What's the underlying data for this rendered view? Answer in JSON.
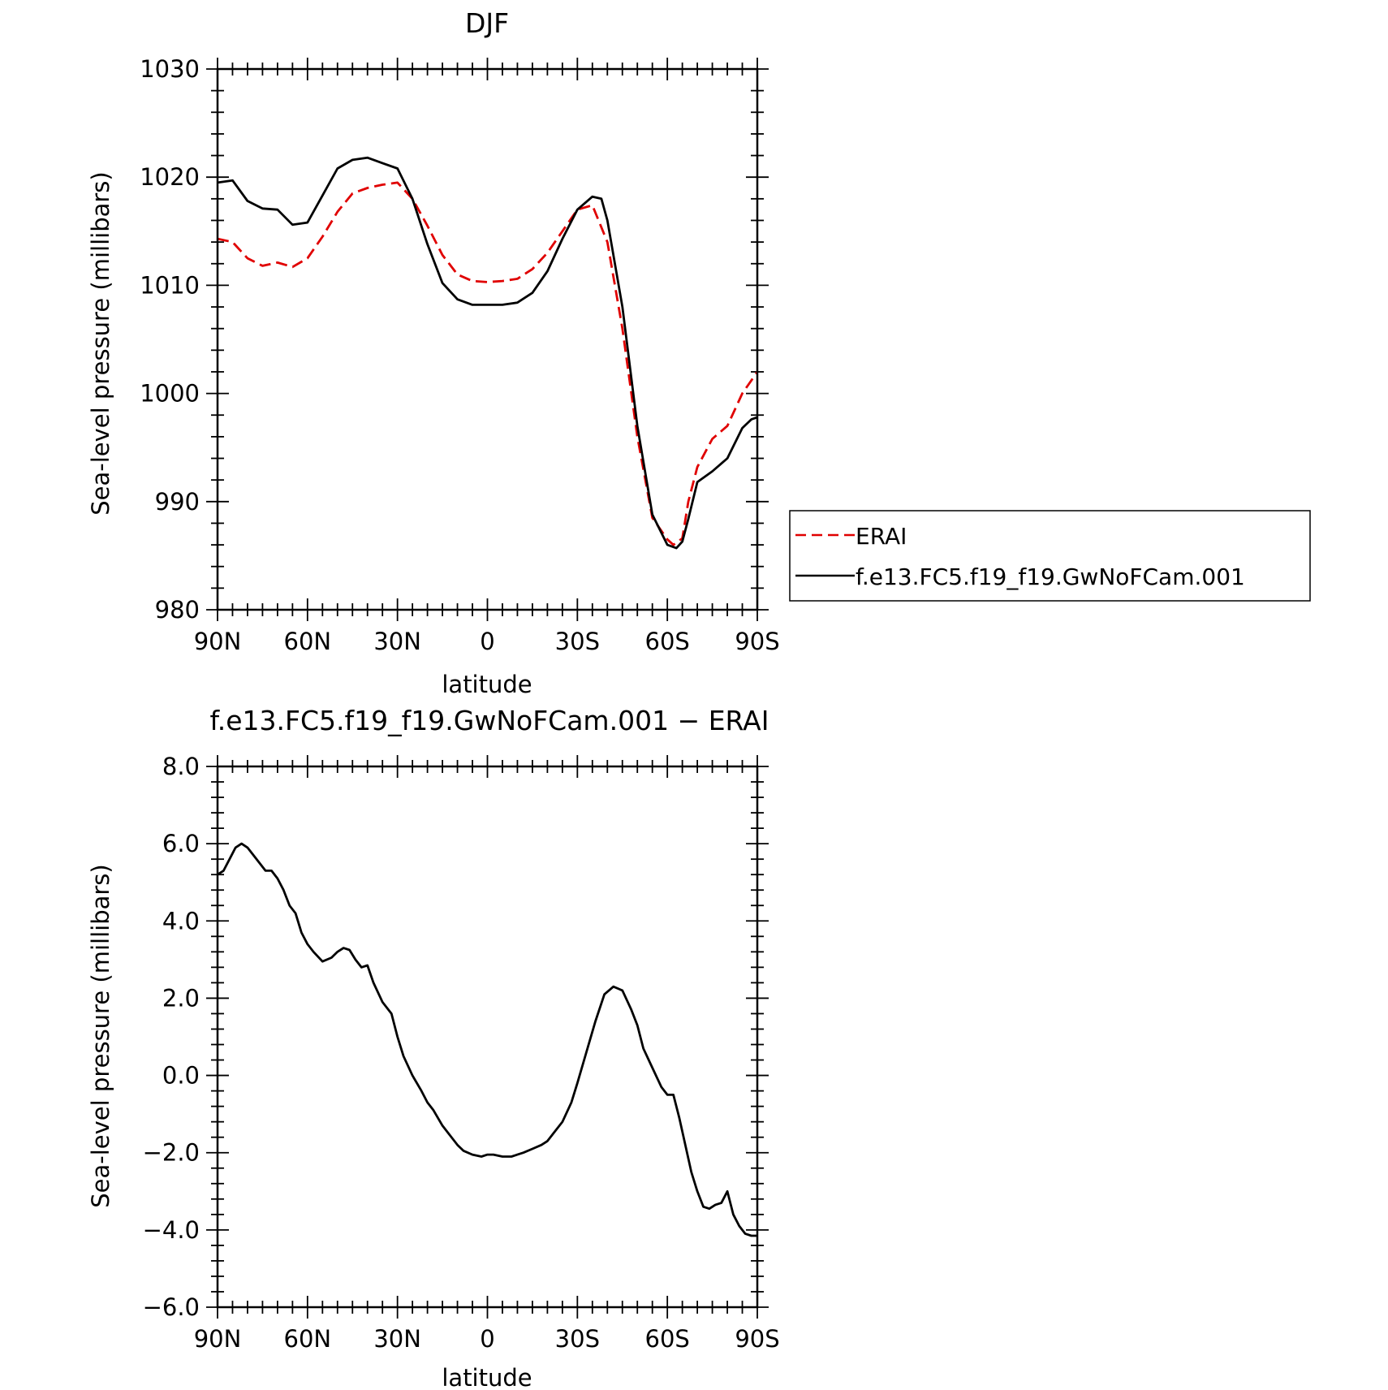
{
  "chart_data": [
    {
      "type": "line",
      "title": "DJF",
      "xlabel": "latitude",
      "ylabel": "Sea-level pressure (millibars)",
      "xlim": [
        90,
        -90
      ],
      "ylim": [
        980,
        1030
      ],
      "x_ticks": [
        90,
        60,
        30,
        0,
        -30,
        -60,
        -90
      ],
      "x_tick_labels": [
        "90N",
        "60N",
        "30N",
        "0",
        "30S",
        "60S",
        "90S"
      ],
      "y_ticks": [
        980,
        990,
        1000,
        1010,
        1020,
        1030
      ],
      "y_tick_labels": [
        "980",
        "990",
        "1000",
        "1010",
        "1020",
        "1030"
      ],
      "legend_position": "right",
      "series": [
        {
          "name": "ERAI",
          "color": "#e00000",
          "style": "dashed",
          "x": [
            90,
            85,
            80,
            75,
            70,
            65,
            60,
            55,
            50,
            45,
            40,
            35,
            30,
            25,
            20,
            15,
            10,
            5,
            0,
            -5,
            -10,
            -15,
            -20,
            -25,
            -30,
            -35,
            -40,
            -45,
            -50,
            -55,
            -60,
            -62,
            -65,
            -67,
            -70,
            -75,
            -80,
            -85,
            -90
          ],
          "y": [
            1014.3,
            1014.0,
            1012.5,
            1011.8,
            1012.1,
            1011.7,
            1012.5,
            1014.5,
            1016.8,
            1018.5,
            1019.0,
            1019.3,
            1019.5,
            1018.0,
            1015.5,
            1012.8,
            1011.0,
            1010.4,
            1010.3,
            1010.4,
            1010.6,
            1011.5,
            1013.0,
            1015.0,
            1017.0,
            1017.4,
            1014.0,
            1006.0,
            996.0,
            988.5,
            986.5,
            986.0,
            986.6,
            990.0,
            993.2,
            995.8,
            997.0,
            1000.0,
            1002.0
          ]
        },
        {
          "name": "f.e13.FC5.f19_f19.GwNoFCam.001",
          "color": "#000000",
          "style": "solid",
          "x": [
            90,
            85,
            80,
            75,
            70,
            65,
            60,
            55,
            50,
            45,
            40,
            35,
            30,
            25,
            20,
            15,
            10,
            5,
            0,
            -5,
            -10,
            -15,
            -20,
            -25,
            -30,
            -35,
            -38,
            -40,
            -45,
            -50,
            -55,
            -60,
            -63,
            -65,
            -67,
            -70,
            -75,
            -80,
            -85,
            -88,
            -90
          ],
          "y": [
            1019.5,
            1019.7,
            1017.8,
            1017.1,
            1017.0,
            1015.6,
            1015.8,
            1018.3,
            1020.8,
            1021.6,
            1021.8,
            1021.3,
            1020.8,
            1018.0,
            1013.8,
            1010.2,
            1008.7,
            1008.2,
            1008.2,
            1008.2,
            1008.4,
            1009.3,
            1011.3,
            1014.3,
            1017.0,
            1018.2,
            1018.0,
            1016.0,
            1008.0,
            997.0,
            988.8,
            986.0,
            985.7,
            986.3,
            988.4,
            991.8,
            992.8,
            994.0,
            996.8,
            997.6,
            997.8
          ]
        }
      ]
    },
    {
      "type": "line",
      "title": "f.e13.FC5.f19_f19.GwNoFCam.001 − ERAI",
      "xlabel": "latitude",
      "ylabel": "Sea-level pressure (millibars)",
      "xlim": [
        90,
        -90
      ],
      "ylim": [
        -6,
        8
      ],
      "x_ticks": [
        90,
        60,
        30,
        0,
        -30,
        -60,
        -90
      ],
      "x_tick_labels": [
        "90N",
        "60N",
        "30N",
        "0",
        "30S",
        "60S",
        "90S"
      ],
      "y_ticks": [
        -6,
        -4,
        -2,
        0,
        2,
        4,
        6,
        8
      ],
      "y_tick_labels": [
        "−6.0",
        "−4.0",
        "−2.0",
        "0.0",
        "2.0",
        "4.0",
        "6.0",
        "8.0"
      ],
      "series": [
        {
          "color": "#000000",
          "style": "solid",
          "x": [
            90,
            88,
            86,
            84,
            82,
            80,
            78,
            76,
            74,
            72,
            70,
            68,
            66,
            64,
            62,
            60,
            58,
            55,
            52,
            50,
            48,
            46,
            44,
            42,
            40,
            38,
            35,
            32,
            30,
            28,
            25,
            22,
            20,
            18,
            15,
            12,
            10,
            8,
            5,
            2,
            0,
            -2,
            -5,
            -8,
            -10,
            -12,
            -15,
            -18,
            -20,
            -22,
            -25,
            -28,
            -30,
            -33,
            -36,
            -39,
            -42,
            -45,
            -48,
            -50,
            -52,
            -55,
            -58,
            -60,
            -62,
            -64,
            -66,
            -68,
            -70,
            -72,
            -74,
            -76,
            -78,
            -80,
            -82,
            -84,
            -86,
            -88,
            -90
          ],
          "y": [
            5.2,
            5.3,
            5.6,
            5.9,
            6.0,
            5.9,
            5.7,
            5.5,
            5.3,
            5.3,
            5.1,
            4.8,
            4.4,
            4.2,
            3.7,
            3.4,
            3.2,
            2.95,
            3.05,
            3.2,
            3.3,
            3.25,
            3.0,
            2.8,
            2.85,
            2.4,
            1.9,
            1.6,
            1.0,
            0.5,
            0.0,
            -0.4,
            -0.7,
            -0.9,
            -1.3,
            -1.6,
            -1.8,
            -1.95,
            -2.05,
            -2.1,
            -2.05,
            -2.05,
            -2.1,
            -2.1,
            -2.05,
            -2.0,
            -1.9,
            -1.8,
            -1.7,
            -1.5,
            -1.2,
            -0.7,
            -0.2,
            0.6,
            1.4,
            2.1,
            2.3,
            2.2,
            1.7,
            1.3,
            0.7,
            0.2,
            -0.3,
            -0.5,
            -0.5,
            -1.1,
            -1.8,
            -2.5,
            -3.0,
            -3.4,
            -3.45,
            -3.35,
            -3.3,
            -3.0,
            -3.6,
            -3.9,
            -4.1,
            -4.15,
            -4.15
          ]
        }
      ]
    }
  ]
}
